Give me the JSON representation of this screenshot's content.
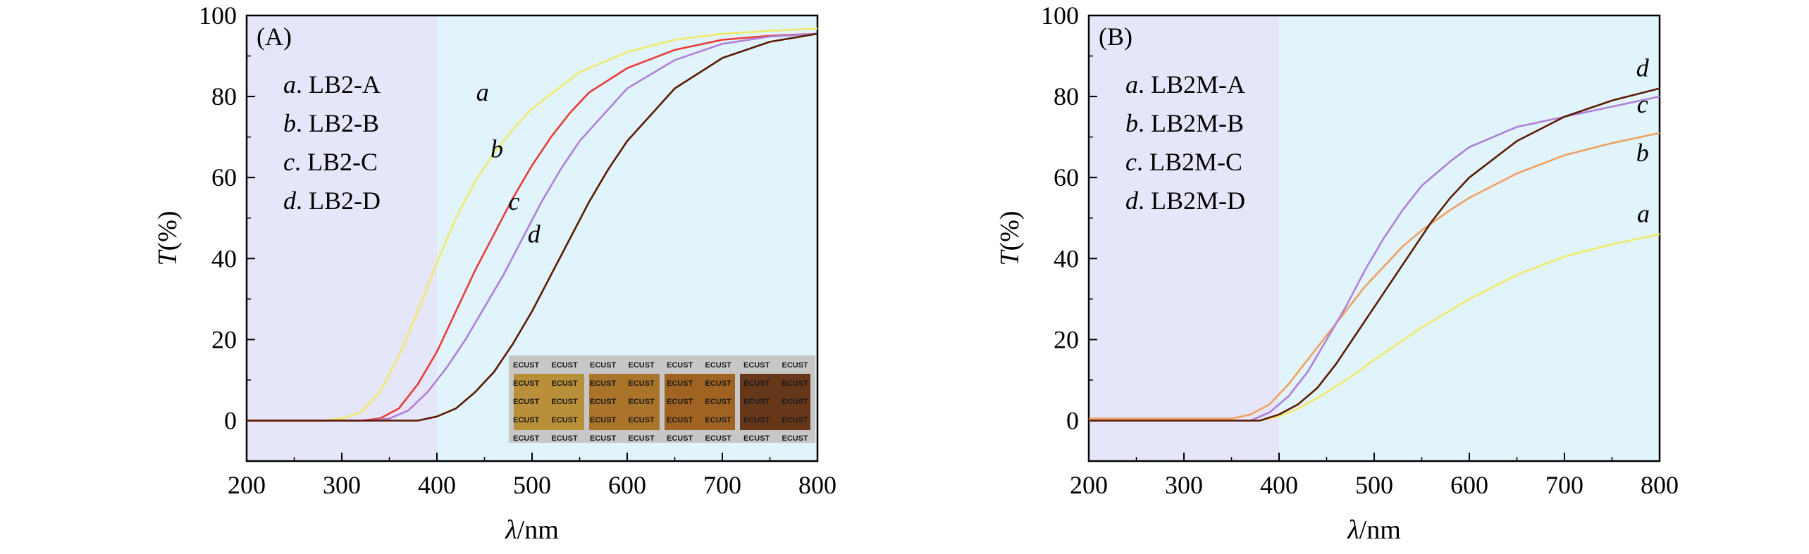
{
  "chart_data": [
    {
      "type": "line",
      "panel_label": "(A)",
      "xlabel_symbol": "λ",
      "xlabel_unit": "/nm",
      "ylabel_symbol": "T",
      "ylabel_unit": "(%)",
      "xlim": [
        200,
        800
      ],
      "ylim": [
        -10,
        100
      ],
      "xticks": [
        200,
        300,
        400,
        500,
        600,
        700,
        800
      ],
      "yticks": [
        0,
        20,
        40,
        60,
        80,
        100
      ],
      "shaded_regions": [
        {
          "from": 200,
          "to": 400,
          "color": "#e6e6fa"
        },
        {
          "from": 400,
          "to": 800,
          "color": "#e1f3fb"
        }
      ],
      "legend_placement": "top-left",
      "legend": [
        {
          "letter": "a",
          "name": ". LB2-A"
        },
        {
          "letter": "b",
          "name": ". LB2-B"
        },
        {
          "letter": "c",
          "name": ". LB2-C"
        },
        {
          "letter": "d",
          "name": ". LB2-D"
        }
      ],
      "series": [
        {
          "label": "a",
          "color": "#f2e96b",
          "label_pos": [
            448,
            79
          ],
          "x": [
            200,
            280,
            300,
            320,
            340,
            360,
            380,
            400,
            420,
            440,
            460,
            480,
            500,
            550,
            600,
            650,
            700,
            750,
            800
          ],
          "y": [
            0,
            0,
            0.5,
            2,
            7,
            16,
            27,
            39,
            50,
            59,
            66,
            72,
            77,
            86,
            91,
            94,
            95.5,
            96.2,
            96.8
          ]
        },
        {
          "label": "b",
          "color": "#e83a3a",
          "label_pos": [
            463,
            65
          ],
          "x": [
            200,
            320,
            340,
            360,
            380,
            400,
            420,
            440,
            460,
            480,
            500,
            520,
            540,
            560,
            600,
            650,
            700,
            750,
            800
          ],
          "y": [
            0,
            0,
            0.5,
            3,
            9,
            17,
            27,
            37,
            46,
            55,
            63,
            70,
            76,
            81,
            87,
            91.5,
            94,
            95,
            95.5
          ]
        },
        {
          "label": "c",
          "color": "#b07fd8",
          "label_pos": [
            481,
            52
          ],
          "x": [
            200,
            330,
            350,
            370,
            390,
            410,
            430,
            450,
            470,
            490,
            510,
            530,
            550,
            600,
            650,
            700,
            750,
            800
          ],
          "y": [
            0,
            0,
            0.5,
            2.5,
            7,
            13,
            20,
            28,
            36,
            45,
            54,
            62,
            69,
            82,
            89,
            93,
            94.8,
            95.5
          ]
        },
        {
          "label": "d",
          "color": "#5a1a00",
          "label_pos": [
            502,
            44
          ],
          "x": [
            200,
            380,
            400,
            420,
            440,
            460,
            480,
            500,
            520,
            540,
            560,
            580,
            600,
            650,
            700,
            750,
            800
          ],
          "y": [
            0,
            0,
            1,
            3,
            7,
            12,
            19,
            27,
            36,
            45,
            54,
            62,
            69,
            82,
            89.5,
            93.5,
            95.5
          ]
        }
      ],
      "inset": {
        "text": "ECUST",
        "swatch_colors": [
          "#b88a2c",
          "#a86d1d",
          "#9c5a14",
          "#5e2a0b"
        ]
      }
    },
    {
      "type": "line",
      "panel_label": "(B)",
      "xlabel_symbol": "λ",
      "xlabel_unit": "/nm",
      "ylabel_symbol": "T",
      "ylabel_unit": "(%)",
      "xlim": [
        200,
        800
      ],
      "ylim": [
        -10,
        100
      ],
      "xticks": [
        200,
        300,
        400,
        500,
        600,
        700,
        800
      ],
      "yticks": [
        0,
        20,
        40,
        60,
        80,
        100
      ],
      "shaded_regions": [
        {
          "from": 200,
          "to": 400,
          "color": "#e6e6fa"
        },
        {
          "from": 400,
          "to": 800,
          "color": "#e1f3fb"
        }
      ],
      "legend_placement": "top-left",
      "legend": [
        {
          "letter": "a",
          "name": ". LB2M-A"
        },
        {
          "letter": "b",
          "name": ". LB2M-B"
        },
        {
          "letter": "c",
          "name": ". LB2M-C"
        },
        {
          "letter": "d",
          "name": ". LB2M-D"
        }
      ],
      "series": [
        {
          "label": "a",
          "color": "#f2e96b",
          "label_pos": [
            783,
            49
          ],
          "x": [
            200,
            380,
            400,
            420,
            440,
            460,
            480,
            500,
            550,
            600,
            650,
            700,
            750,
            800
          ],
          "y": [
            0,
            0,
            1,
            3,
            5.5,
            8.5,
            11.5,
            15,
            23,
            30,
            36,
            40.5,
            43.5,
            46
          ]
        },
        {
          "label": "b",
          "color": "#f0a060",
          "label_pos": [
            782,
            64
          ],
          "x": [
            200,
            350,
            370,
            390,
            410,
            430,
            450,
            470,
            490,
            510,
            530,
            550,
            580,
            600,
            650,
            700,
            750,
            800
          ],
          "y": [
            0.5,
            0.5,
            1.5,
            4,
            9,
            15,
            21,
            27,
            33,
            38,
            43,
            47,
            52,
            55,
            61,
            65.5,
            68.5,
            71
          ]
        },
        {
          "label": "c",
          "color": "#b07fd8",
          "label_pos": [
            782,
            76
          ],
          "x": [
            200,
            370,
            390,
            410,
            430,
            450,
            470,
            490,
            510,
            530,
            550,
            580,
            600,
            650,
            700,
            750,
            800
          ],
          "y": [
            0,
            0,
            2,
            6,
            12,
            20,
            28,
            37,
            45,
            52,
            58,
            64,
            67.5,
            72.5,
            75,
            77.5,
            80
          ]
        },
        {
          "label": "d",
          "color": "#5a1a00",
          "label_pos": [
            782,
            85
          ],
          "x": [
            200,
            380,
            400,
            420,
            440,
            460,
            480,
            500,
            520,
            540,
            560,
            580,
            600,
            650,
            700,
            750,
            800
          ],
          "y": [
            0,
            0,
            1.5,
            4,
            8,
            14,
            21,
            28,
            35,
            42,
            49,
            55,
            60,
            69,
            75,
            79,
            82
          ]
        }
      ]
    }
  ]
}
